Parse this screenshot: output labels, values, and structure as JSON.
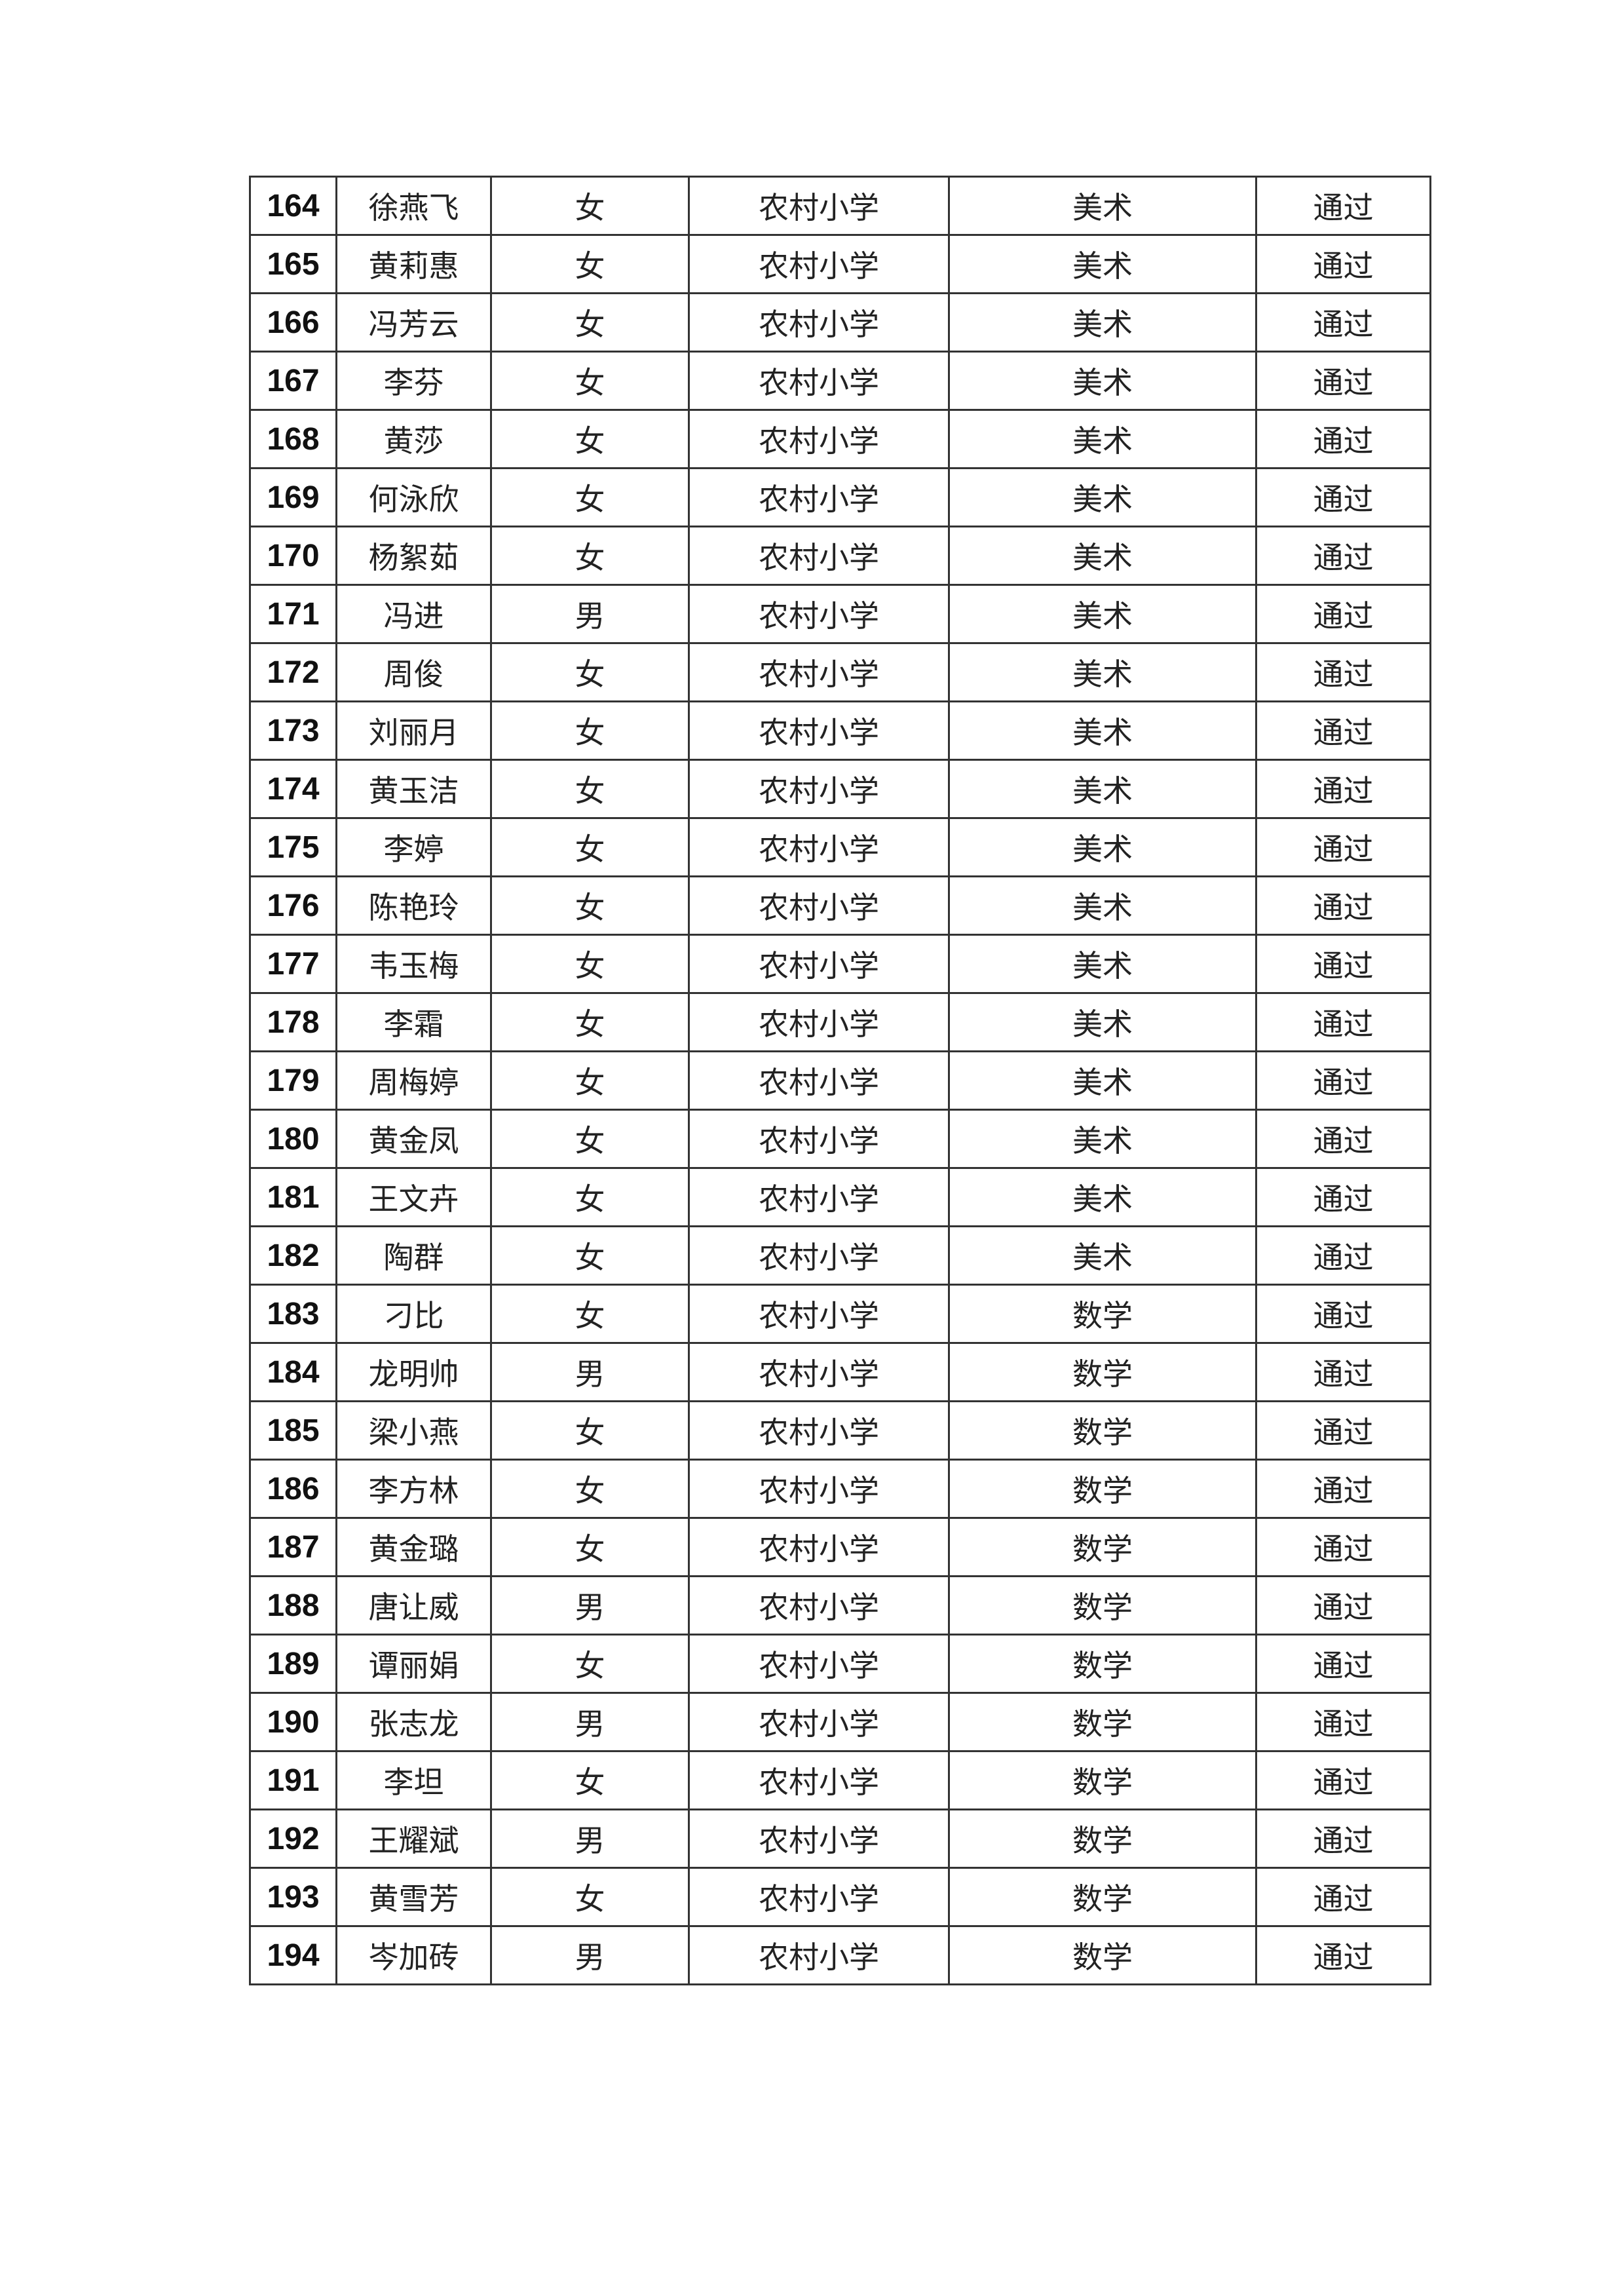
{
  "table": {
    "rows": [
      {
        "no": "164",
        "name": "徐燕飞",
        "gender": "女",
        "school": "农村小学",
        "subject": "美术",
        "result": "通过"
      },
      {
        "no": "165",
        "name": "黄莉惠",
        "gender": "女",
        "school": "农村小学",
        "subject": "美术",
        "result": "通过"
      },
      {
        "no": "166",
        "name": "冯芳云",
        "gender": "女",
        "school": "农村小学",
        "subject": "美术",
        "result": "通过"
      },
      {
        "no": "167",
        "name": "李芬",
        "gender": "女",
        "school": "农村小学",
        "subject": "美术",
        "result": "通过"
      },
      {
        "no": "168",
        "name": "黄莎",
        "gender": "女",
        "school": "农村小学",
        "subject": "美术",
        "result": "通过"
      },
      {
        "no": "169",
        "name": "何泳欣",
        "gender": "女",
        "school": "农村小学",
        "subject": "美术",
        "result": "通过"
      },
      {
        "no": "170",
        "name": "杨絮茹",
        "gender": "女",
        "school": "农村小学",
        "subject": "美术",
        "result": "通过"
      },
      {
        "no": "171",
        "name": "冯进",
        "gender": "男",
        "school": "农村小学",
        "subject": "美术",
        "result": "通过"
      },
      {
        "no": "172",
        "name": "周俊",
        "gender": "女",
        "school": "农村小学",
        "subject": "美术",
        "result": "通过"
      },
      {
        "no": "173",
        "name": "刘丽月",
        "gender": "女",
        "school": "农村小学",
        "subject": "美术",
        "result": "通过"
      },
      {
        "no": "174",
        "name": "黄玉洁",
        "gender": "女",
        "school": "农村小学",
        "subject": "美术",
        "result": "通过"
      },
      {
        "no": "175",
        "name": "李婷",
        "gender": "女",
        "school": "农村小学",
        "subject": "美术",
        "result": "通过"
      },
      {
        "no": "176",
        "name": "陈艳玲",
        "gender": "女",
        "school": "农村小学",
        "subject": "美术",
        "result": "通过"
      },
      {
        "no": "177",
        "name": "韦玉梅",
        "gender": "女",
        "school": "农村小学",
        "subject": "美术",
        "result": "通过"
      },
      {
        "no": "178",
        "name": "李霜",
        "gender": "女",
        "school": "农村小学",
        "subject": "美术",
        "result": "通过"
      },
      {
        "no": "179",
        "name": "周梅婷",
        "gender": "女",
        "school": "农村小学",
        "subject": "美术",
        "result": "通过"
      },
      {
        "no": "180",
        "name": "黄金凤",
        "gender": "女",
        "school": "农村小学",
        "subject": "美术",
        "result": "通过"
      },
      {
        "no": "181",
        "name": "王文卉",
        "gender": "女",
        "school": "农村小学",
        "subject": "美术",
        "result": "通过"
      },
      {
        "no": "182",
        "name": "陶群",
        "gender": "女",
        "school": "农村小学",
        "subject": "美术",
        "result": "通过"
      },
      {
        "no": "183",
        "name": "刁比",
        "gender": "女",
        "school": "农村小学",
        "subject": "数学",
        "result": "通过"
      },
      {
        "no": "184",
        "name": "龙明帅",
        "gender": "男",
        "school": "农村小学",
        "subject": "数学",
        "result": "通过"
      },
      {
        "no": "185",
        "name": "梁小燕",
        "gender": "女",
        "school": "农村小学",
        "subject": "数学",
        "result": "通过"
      },
      {
        "no": "186",
        "name": "李方林",
        "gender": "女",
        "school": "农村小学",
        "subject": "数学",
        "result": "通过"
      },
      {
        "no": "187",
        "name": "黄金璐",
        "gender": "女",
        "school": "农村小学",
        "subject": "数学",
        "result": "通过"
      },
      {
        "no": "188",
        "name": "唐让威",
        "gender": "男",
        "school": "农村小学",
        "subject": "数学",
        "result": "通过"
      },
      {
        "no": "189",
        "name": "谭丽娟",
        "gender": "女",
        "school": "农村小学",
        "subject": "数学",
        "result": "通过"
      },
      {
        "no": "190",
        "name": "张志龙",
        "gender": "男",
        "school": "农村小学",
        "subject": "数学",
        "result": "通过"
      },
      {
        "no": "191",
        "name": "李坦",
        "gender": "女",
        "school": "农村小学",
        "subject": "数学",
        "result": "通过"
      },
      {
        "no": "192",
        "name": "王耀斌",
        "gender": "男",
        "school": "农村小学",
        "subject": "数学",
        "result": "通过"
      },
      {
        "no": "193",
        "name": "黄雪芳",
        "gender": "女",
        "school": "农村小学",
        "subject": "数学",
        "result": "通过"
      },
      {
        "no": "194",
        "name": "岑加砖",
        "gender": "男",
        "school": "农村小学",
        "subject": "数学",
        "result": "通过"
      }
    ]
  }
}
